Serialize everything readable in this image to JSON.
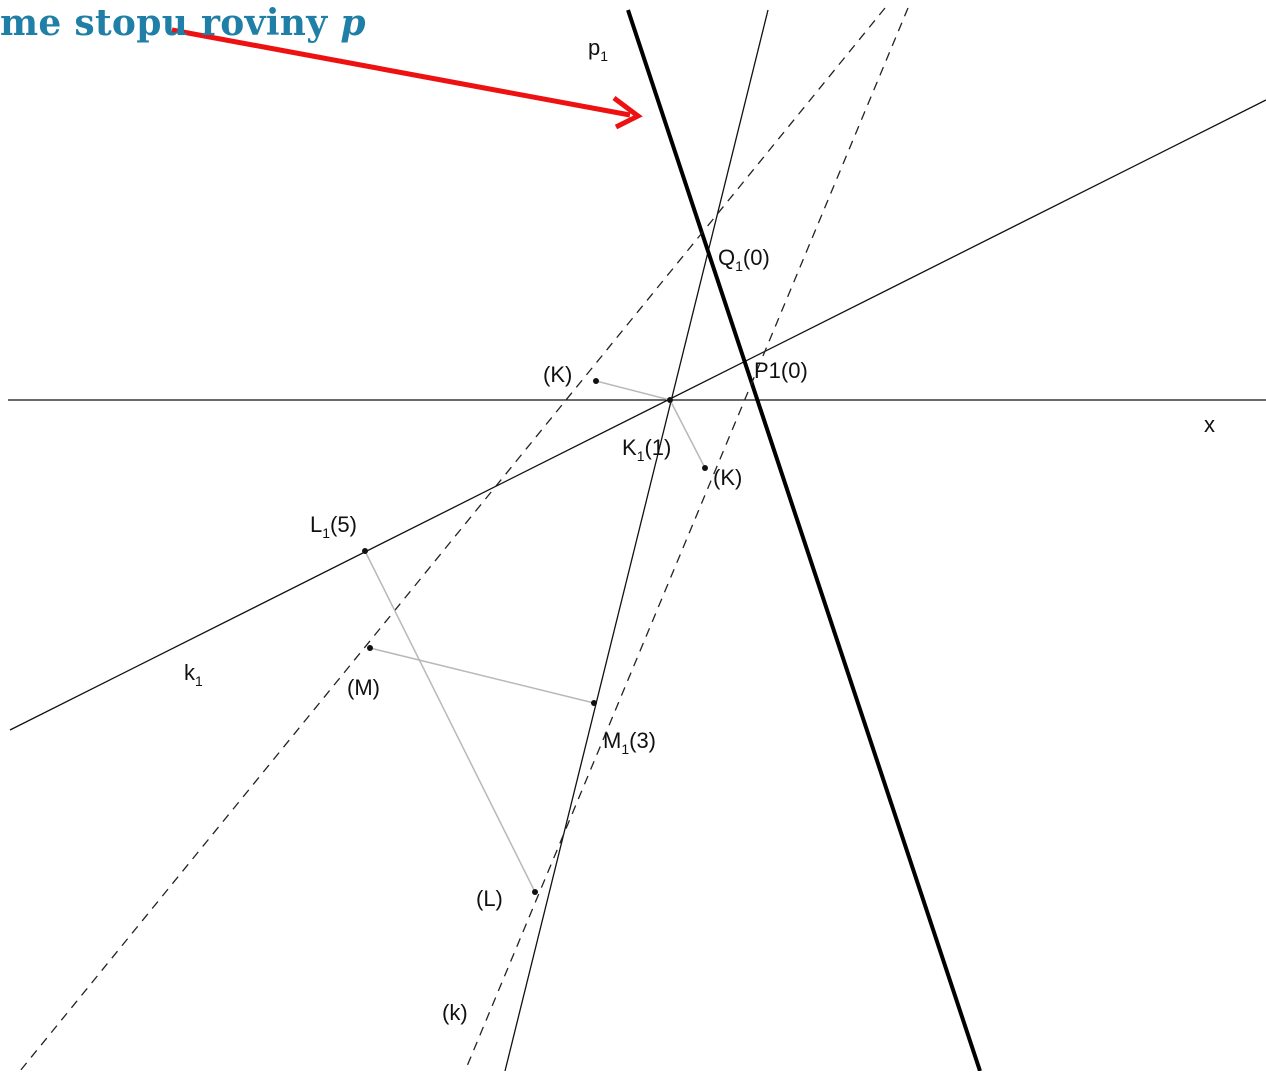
{
  "title": {
    "text": "me stopu roviny ",
    "var": "p"
  },
  "labels": {
    "p1": {
      "main": "p",
      "sub": "1"
    },
    "x": "x",
    "q1": {
      "main": "Q",
      "sub": "1",
      "tail": "(0)"
    },
    "p1_point": "P1(0)",
    "k_top": "(K)",
    "k_bottom": "(K)",
    "k1_point": {
      "main": "K",
      "sub": "1",
      "tail": "(1)"
    },
    "l1": {
      "main": "L",
      "sub": "1",
      "tail": "(5)"
    },
    "k1_line": {
      "main": "k",
      "sub": "1"
    },
    "m": "(M)",
    "m1": {
      "main": "M",
      "sub": "1",
      "tail": "(3)"
    },
    "l": "(L)",
    "k_line": "(k)"
  },
  "colors": {
    "title": "#1f7fa6",
    "arrow": "#ee1111"
  }
}
